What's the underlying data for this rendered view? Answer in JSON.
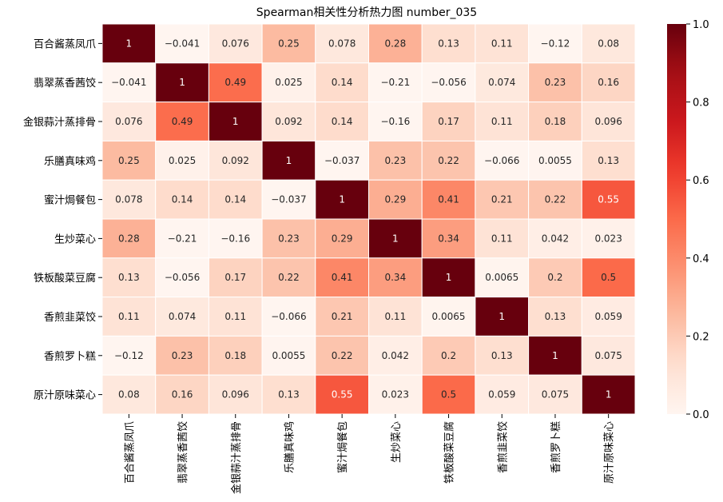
{
  "chart_data": {
    "type": "heatmap",
    "title": "Spearman相关性分析热力图 number_035",
    "labels": [
      "百合酱蒸凤爪",
      "翡翠蒸香茜饺",
      "金银蒜汁蒸排骨",
      "乐膳真味鸡",
      "蜜汁焗餐包",
      "生炒菜心",
      "铁板酸菜豆腐",
      "香煎韭菜饺",
      "香煎罗卜糕",
      "原汁原味菜心"
    ],
    "matrix": [
      [
        1,
        -0.041,
        0.076,
        0.25,
        0.078,
        0.28,
        0.13,
        0.11,
        -0.12,
        0.08
      ],
      [
        -0.041,
        1,
        0.49,
        0.025,
        0.14,
        -0.21,
        -0.056,
        0.074,
        0.23,
        0.16
      ],
      [
        0.076,
        0.49,
        1,
        0.092,
        0.14,
        -0.16,
        0.17,
        0.11,
        0.18,
        0.096
      ],
      [
        0.25,
        0.025,
        0.092,
        1,
        -0.037,
        0.23,
        0.22,
        -0.066,
        0.0055,
        0.13
      ],
      [
        0.078,
        0.14,
        0.14,
        -0.037,
        1,
        0.29,
        0.41,
        0.21,
        0.22,
        0.55
      ],
      [
        0.28,
        -0.21,
        -0.16,
        0.23,
        0.29,
        1,
        0.34,
        0.11,
        0.042,
        0.023
      ],
      [
        0.13,
        -0.056,
        0.17,
        0.22,
        0.41,
        0.34,
        1,
        0.0065,
        0.2,
        0.5
      ],
      [
        0.11,
        0.074,
        0.11,
        -0.066,
        0.21,
        0.11,
        0.0065,
        1,
        0.13,
        0.059
      ],
      [
        -0.12,
        0.23,
        0.18,
        0.0055,
        0.22,
        0.042,
        0.2,
        0.13,
        1,
        0.075
      ],
      [
        0.08,
        0.16,
        0.096,
        0.13,
        0.55,
        0.023,
        0.5,
        0.059,
        0.075,
        1
      ]
    ],
    "colorbar": {
      "range": [
        0,
        1
      ],
      "ticks": [
        "0.0",
        "0.2",
        "0.4",
        "0.6",
        "0.8",
        "1.0"
      ],
      "colormap": "Reds"
    },
    "annotations": true
  }
}
